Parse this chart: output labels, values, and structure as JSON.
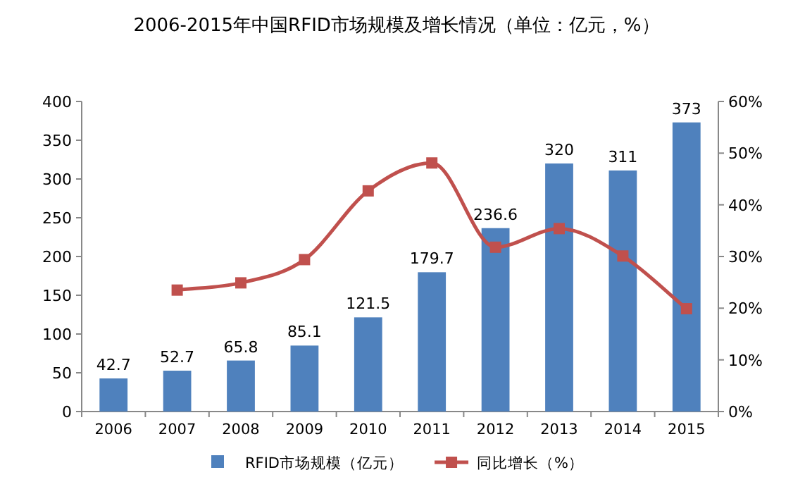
{
  "chart_data": {
    "type": "bar",
    "title": "2006-2015年中国RFID市场规模及增长情况（单位：亿元，%）",
    "categories": [
      "2006",
      "2007",
      "2008",
      "2009",
      "2010",
      "2011",
      "2012",
      "2013",
      "2014",
      "2015"
    ],
    "series": [
      {
        "name": "RFID市场规模（亿元）",
        "color": "#4f81bd",
        "values": [
          42.7,
          52.7,
          65.8,
          85.1,
          121.5,
          179.7,
          236.6,
          320,
          311,
          373
        ],
        "value_labels": [
          "42.7",
          "52.7",
          "65.8",
          "85.1",
          "121.5",
          "179.7",
          "236.6",
          "320",
          "311",
          "373"
        ]
      },
      {
        "name": "同比增长（%）",
        "type": "line",
        "axis": "y2",
        "color": "#c0504d",
        "marker": "square",
        "values": [
          null,
          23.5,
          24.9,
          29.4,
          42.7,
          48.1,
          31.8,
          35.4,
          30.1,
          19.9
        ]
      }
    ],
    "ylim": [
      0,
      400
    ],
    "yticks": [
      0,
      50,
      100,
      150,
      200,
      250,
      300,
      350,
      400
    ],
    "y2lim": [
      0,
      60
    ],
    "y2ticks": [
      {
        "value": 0,
        "label": "0%"
      },
      {
        "value": 10,
        "label": "10%"
      },
      {
        "value": 20,
        "label": "20%"
      },
      {
        "value": 30,
        "label": "30%"
      },
      {
        "value": 40,
        "label": "40%"
      },
      {
        "value": 50,
        "label": "50%"
      },
      {
        "value": 60,
        "label": "60%"
      }
    ],
    "legend": "bottom",
    "grid": false
  }
}
